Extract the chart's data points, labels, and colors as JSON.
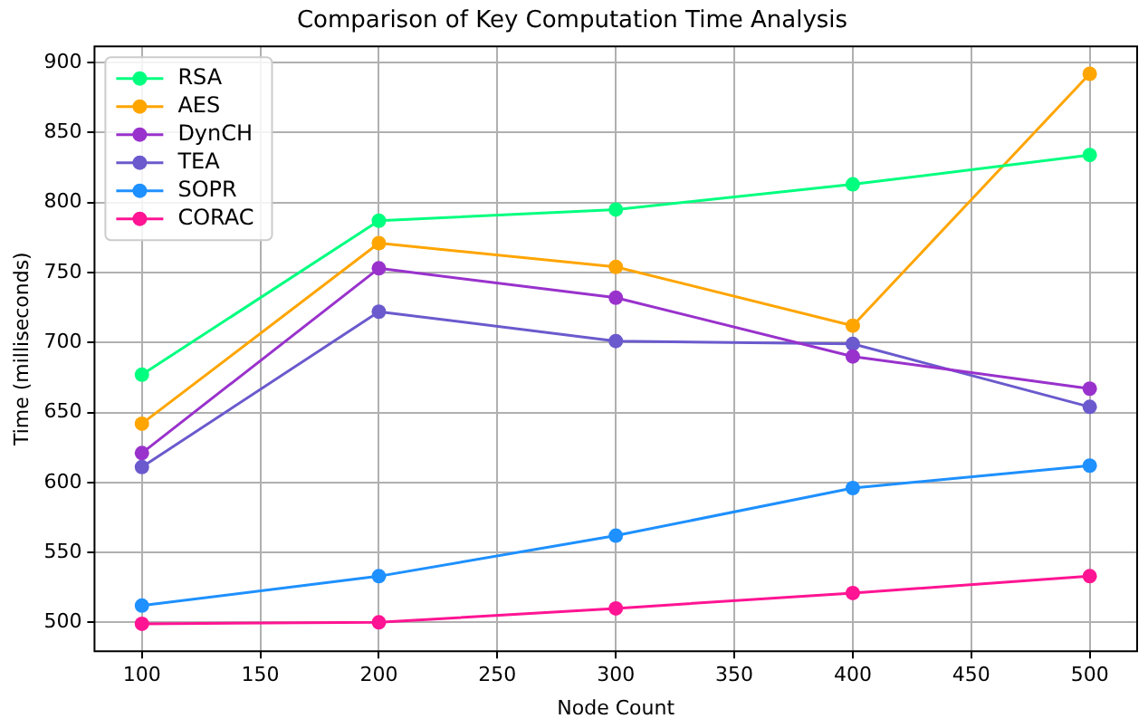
{
  "chart_data": {
    "type": "line",
    "title": "Comparison of Key Computation Time Analysis",
    "xlabel": "Node Count",
    "ylabel": "Time (milliseconds)",
    "x": [
      100,
      200,
      300,
      400,
      500
    ],
    "series": [
      {
        "name": "RSA",
        "color": "#00ff7f",
        "values": [
          677,
          787,
          795,
          813,
          834
        ]
      },
      {
        "name": "AES",
        "color": "#ffa500",
        "values": [
          642,
          771,
          754,
          712,
          892
        ]
      },
      {
        "name": "DynCH",
        "color": "#9932cc",
        "values": [
          621,
          753,
          732,
          690,
          667
        ]
      },
      {
        "name": "TEA",
        "color": "#6a5acd",
        "values": [
          611,
          722,
          701,
          699,
          654
        ]
      },
      {
        "name": "SOPR",
        "color": "#1e90ff",
        "values": [
          512,
          533,
          562,
          596,
          612
        ]
      },
      {
        "name": "CORAC",
        "color": "#ff1493",
        "values": [
          499,
          500,
          510,
          521,
          533
        ]
      }
    ],
    "xlim": [
      80,
      520
    ],
    "xticks": [
      100,
      150,
      200,
      250,
      300,
      350,
      400,
      450,
      500
    ],
    "ylim": [
      479.4,
      911.6
    ],
    "yticks": [
      500,
      550,
      600,
      650,
      700,
      750,
      800,
      850,
      900
    ],
    "grid": true,
    "legend": "top left",
    "marker": "circle",
    "line_style": "solid"
  }
}
